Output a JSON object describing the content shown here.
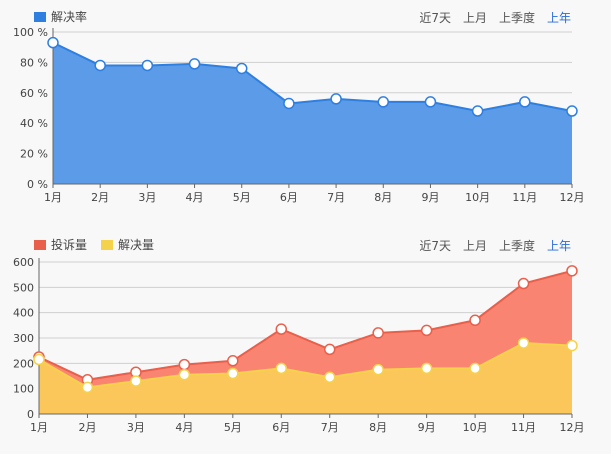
{
  "range_tabs": [
    "近7天",
    "上月",
    "上季度",
    "上年"
  ],
  "active_tab": 3,
  "chart_data": [
    {
      "type": "area",
      "categories": [
        "1月",
        "2月",
        "3月",
        "4月",
        "5月",
        "6月",
        "7月",
        "8月",
        "9月",
        "10月",
        "11月",
        "12月"
      ],
      "series": [
        {
          "name": "解决率",
          "color": "#2e7fe0",
          "fill": "#5b9be8",
          "values": [
            93,
            78,
            78,
            79,
            76,
            53,
            56,
            54,
            54,
            48,
            54,
            48
          ]
        }
      ],
      "ylim": [
        0,
        100
      ],
      "yticks": [
        "0 %",
        "20 %",
        "40 %",
        "60 %",
        "80 %",
        "100 %"
      ],
      "grid": true,
      "legend": "top-left"
    },
    {
      "type": "area",
      "categories": [
        "1月",
        "2月",
        "3月",
        "4月",
        "5月",
        "6月",
        "7月",
        "8月",
        "9月",
        "10月",
        "11月",
        "12月"
      ],
      "series": [
        {
          "name": "投诉量",
          "color": "#e8604c",
          "fill": "#f98471",
          "values": [
            225,
            135,
            165,
            195,
            210,
            335,
            255,
            320,
            330,
            370,
            515,
            565
          ]
        },
        {
          "name": "解决量",
          "color": "#f5d24b",
          "fill": "#fcc75a",
          "values": [
            215,
            105,
            130,
            155,
            160,
            180,
            145,
            175,
            180,
            180,
            280,
            270
          ]
        }
      ],
      "ylim": [
        0,
        600
      ],
      "yticks": [
        "0",
        "100",
        "200",
        "300",
        "400",
        "500",
        "600"
      ],
      "grid": true,
      "legend": "top-left"
    }
  ]
}
